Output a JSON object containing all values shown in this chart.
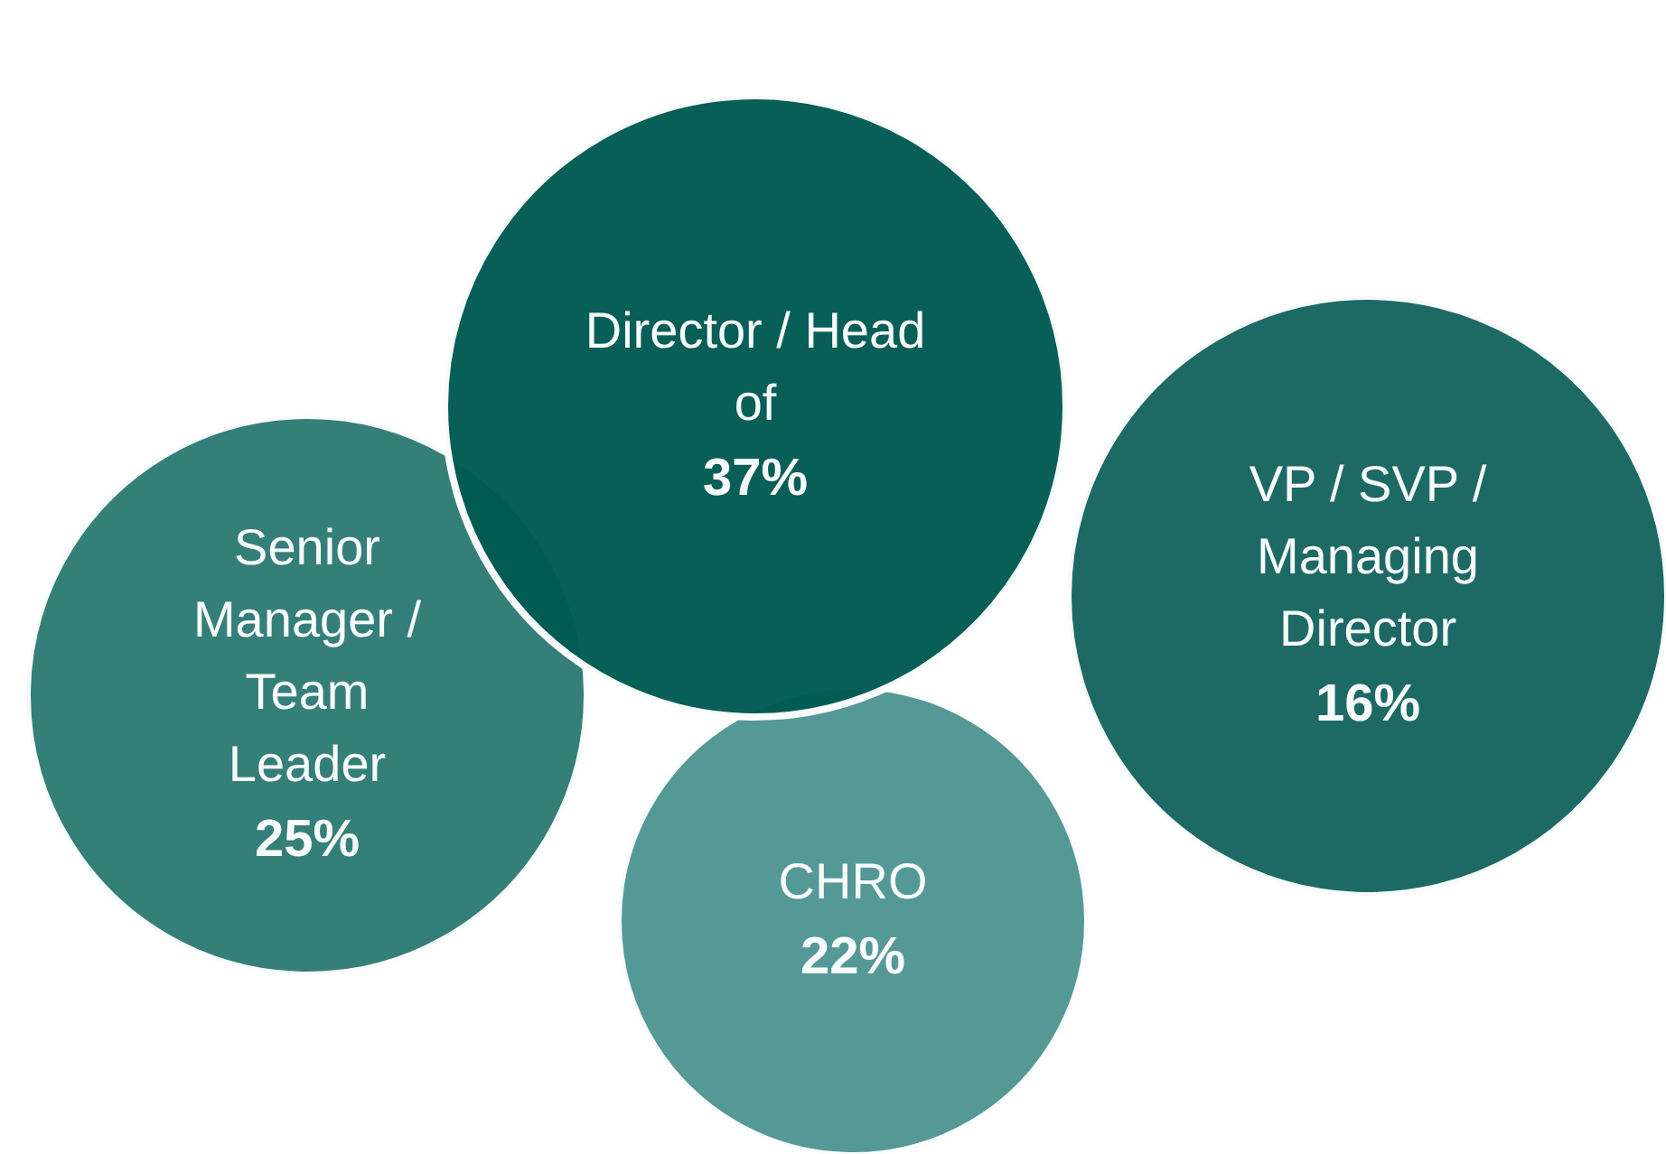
{
  "chart_data": {
    "type": "other",
    "categories": [
      "Senior Manager / Team Leader",
      "CHRO",
      "Director / Head of",
      "VP / SVP / Managing Director"
    ],
    "values": [
      25,
      22,
      37,
      16
    ],
    "value_labels": [
      "25%",
      "22%",
      "37%",
      "16%"
    ],
    "colors": [
      "#2e7b75",
      "#4f9693",
      "#005a52",
      "#166560"
    ]
  }
}
